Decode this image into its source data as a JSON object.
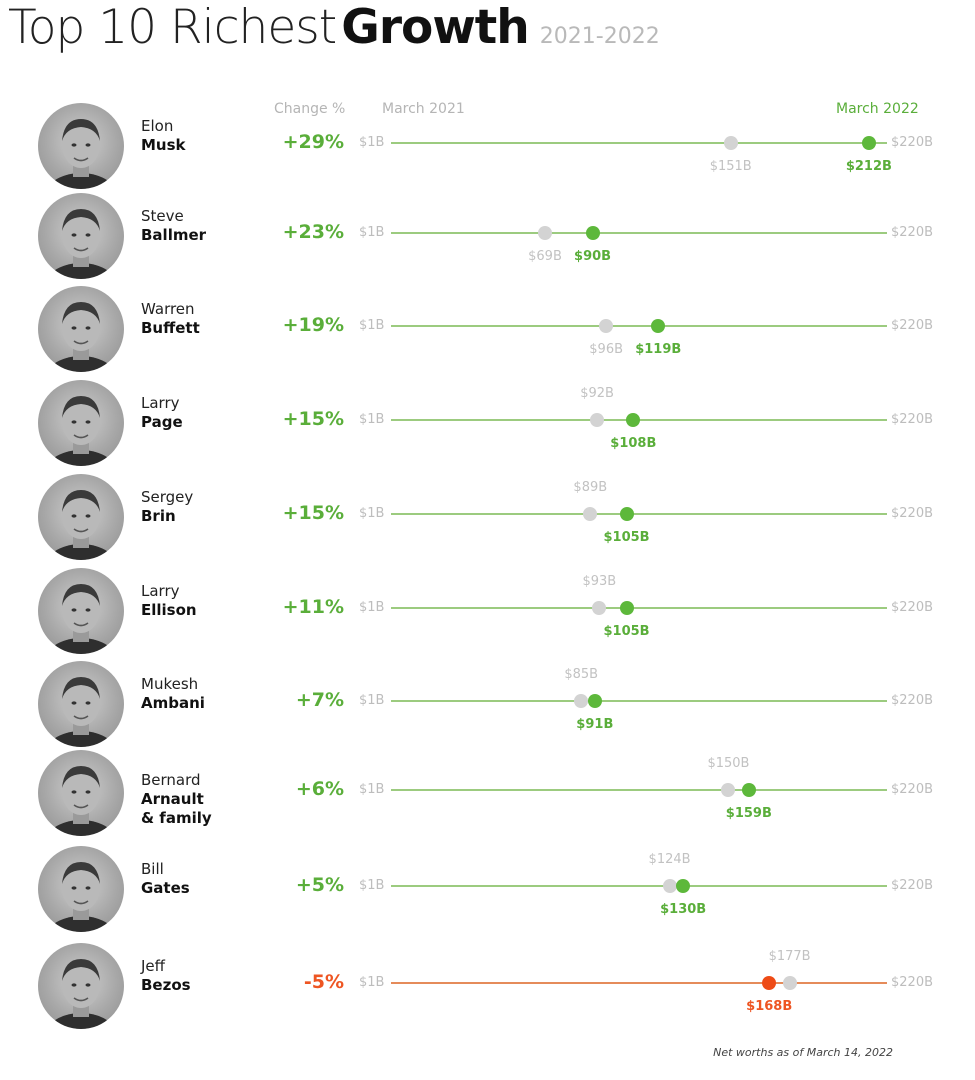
{
  "title": {
    "prefix": "Top 10 Richest",
    "bold": "Growth",
    "years": "2021-2022"
  },
  "headers": {
    "change": "Change %",
    "start": "March 2021",
    "end": "March 2022"
  },
  "footnote": "Net worths as of March 14, 2022",
  "colors": {
    "positive": "#5aae3a",
    "negative": "#ee5522",
    "old_dot": "#d3d3d3"
  },
  "chart_data": {
    "type": "dumbbell",
    "axis": {
      "min": 1,
      "max": 220,
      "min_label": "$1B",
      "max_label": "$220B",
      "unit": "billion USD"
    },
    "series_names": [
      "March 2021",
      "March 2022"
    ],
    "rows": [
      {
        "first": "Elon",
        "last": "Musk",
        "last2": "",
        "change": "+29%",
        "start": 151,
        "start_label": "$151B",
        "end": 212,
        "end_label": "$212B",
        "negative": false
      },
      {
        "first": "Steve",
        "last": "Ballmer",
        "last2": "",
        "change": "+23%",
        "start": 69,
        "start_label": "$69B",
        "end": 90,
        "end_label": "$90B",
        "negative": false
      },
      {
        "first": "Warren",
        "last": "Buffett",
        "last2": "",
        "change": "+19%",
        "start": 96,
        "start_label": "$96B",
        "end": 119,
        "end_label": "$119B",
        "negative": false
      },
      {
        "first": "Larry",
        "last": "Page",
        "last2": "",
        "change": "+15%",
        "start": 92,
        "start_label": "$92B",
        "end": 108,
        "end_label": "$108B",
        "negative": false
      },
      {
        "first": "Sergey",
        "last": "Brin",
        "last2": "",
        "change": "+15%",
        "start": 89,
        "start_label": "$89B",
        "end": 105,
        "end_label": "$105B",
        "negative": false
      },
      {
        "first": "Larry",
        "last": "Ellison",
        "last2": "",
        "change": "+11%",
        "start": 93,
        "start_label": "$93B",
        "end": 105,
        "end_label": "$105B",
        "negative": false
      },
      {
        "first": "Mukesh",
        "last": "Ambani",
        "last2": "",
        "change": "+7%",
        "start": 85,
        "start_label": "$85B",
        "end": 91,
        "end_label": "$91B",
        "negative": false
      },
      {
        "first": "Bernard",
        "last": "Arnault",
        "last2": "& family",
        "change": "+6%",
        "start": 150,
        "start_label": "$150B",
        "end": 159,
        "end_label": "$159B",
        "negative": false
      },
      {
        "first": "Bill",
        "last": "Gates",
        "last2": "",
        "change": "+5%",
        "start": 124,
        "start_label": "$124B",
        "end": 130,
        "end_label": "$130B",
        "negative": false
      },
      {
        "first": "Jeff",
        "last": "Bezos",
        "last2": "",
        "change": "-5%",
        "start": 177,
        "start_label": "$177B",
        "end": 168,
        "end_label": "$168B",
        "negative": true
      }
    ]
  }
}
